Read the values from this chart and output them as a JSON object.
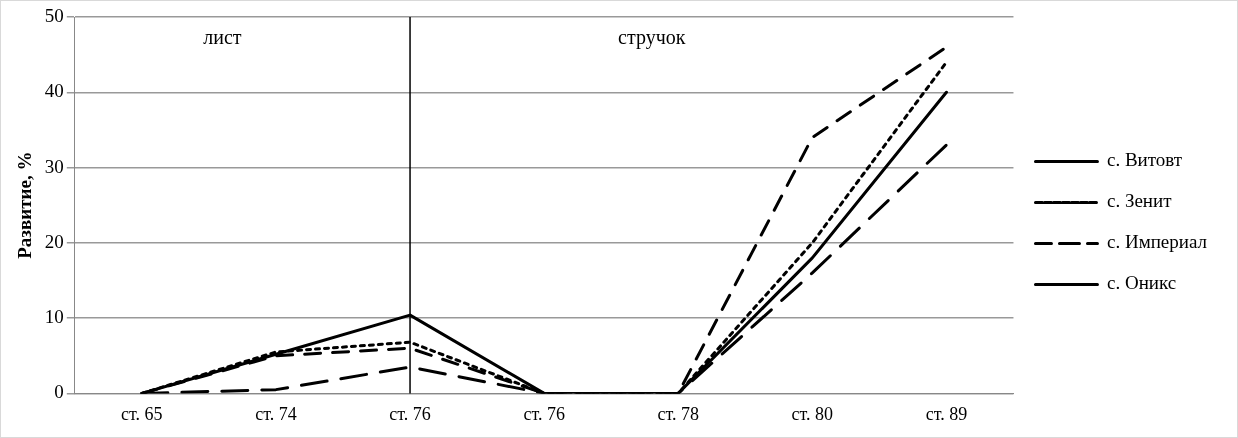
{
  "chart_data": {
    "type": "line",
    "ylabel": "Развитие, %",
    "categories": [
      "ст. 65",
      "ст. 74",
      "ст. 76",
      "ст. 76",
      "ст. 78",
      "ст. 80",
      "ст. 89"
    ],
    "series": [
      {
        "name": "с. Витовт",
        "color": "#000000",
        "line_style": "solid",
        "values": [
          0,
          5.2,
          10.4,
          0,
          0,
          18,
          40
        ]
      },
      {
        "name": "с. Зенит",
        "color": "#000000",
        "line_style": "dotted",
        "values": [
          0,
          5.5,
          6.8,
          0,
          0,
          20,
          44
        ]
      },
      {
        "name": "с. Империал",
        "color": "#000000",
        "line_style": "dashed",
        "values": [
          0,
          5,
          6,
          0,
          0,
          34,
          46
        ]
      },
      {
        "name": "с. Оникс",
        "color": "#000000",
        "line_style": "dashed",
        "values": [
          0,
          0.5,
          3.5,
          0,
          0,
          16,
          33
        ]
      }
    ],
    "ylim": [
      0,
      50
    ],
    "yticks": [
      0,
      10,
      20,
      30,
      40,
      50
    ],
    "grid": "y",
    "legend": "right",
    "marker": "none",
    "ref_lines": [
      {
        "axis": "x",
        "value": "ст. 76",
        "color": "#000000"
      }
    ],
    "annotations": [
      "лист",
      "стручок"
    ]
  }
}
